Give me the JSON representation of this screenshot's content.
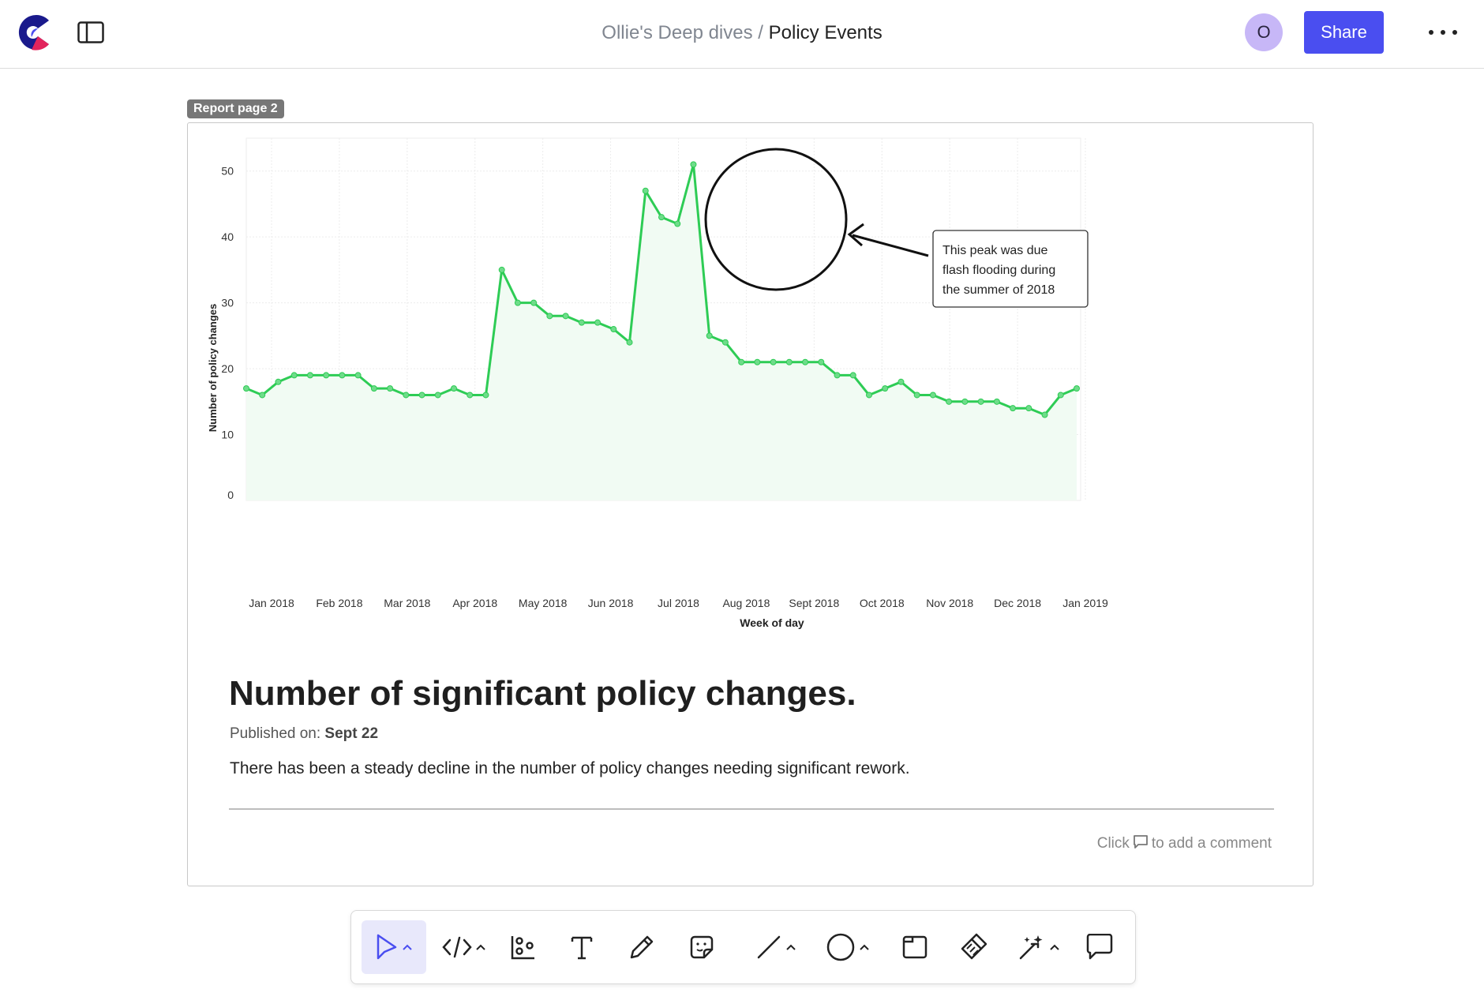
{
  "header": {
    "breadcrumb_parent": "Ollie's Deep dives",
    "breadcrumb_separator": " / ",
    "breadcrumb_current": "Policy Events",
    "avatar_initial": "O",
    "share_label": "Share"
  },
  "report": {
    "page_tag": "Report page 2",
    "title": "Number of significant policy changes.",
    "published_label": "Published on: ",
    "published_value": "Sept 22",
    "description": "There has been a steady decline in the number of policy changes needing significant rework.",
    "comment_hint_prefix": "Click",
    "comment_hint_suffix": "to add a comment"
  },
  "chart_data": {
    "type": "area",
    "title": "",
    "xlabel": "Week of day",
    "ylabel": "Number of policy changes",
    "ylim": [
      0,
      55
    ],
    "y_ticks": [
      0,
      10,
      20,
      30,
      40,
      50
    ],
    "x_ticks": [
      "Jan 2018",
      "Feb 2018",
      "Mar 2018",
      "Apr 2018",
      "May 2018",
      "Jun 2018",
      "Jul 2018",
      "Aug 2018",
      "Sept 2018",
      "Oct 2018",
      "Nov 2018",
      "Dec 2018",
      "Jan 2019"
    ],
    "grid": true,
    "series": [
      {
        "values": [
          17,
          16,
          18,
          19,
          19,
          19,
          19,
          19,
          17,
          17,
          16,
          16,
          16,
          17,
          16,
          16,
          35,
          30,
          30,
          28,
          28,
          27,
          27,
          26,
          24,
          47,
          43,
          42,
          51,
          25,
          24,
          21,
          21,
          21,
          21,
          21,
          21,
          19,
          19,
          16,
          17,
          18,
          16,
          16,
          15,
          15,
          15,
          15,
          14,
          14,
          13,
          16,
          17
        ]
      }
    ],
    "annotation": {
      "text_lines": [
        "This peak was due",
        "flash flooding during",
        "the summer of 2018"
      ]
    },
    "colors": {
      "line": "#2ecc55",
      "fill": "#f1fbf3",
      "grid": "#ececec"
    }
  }
}
